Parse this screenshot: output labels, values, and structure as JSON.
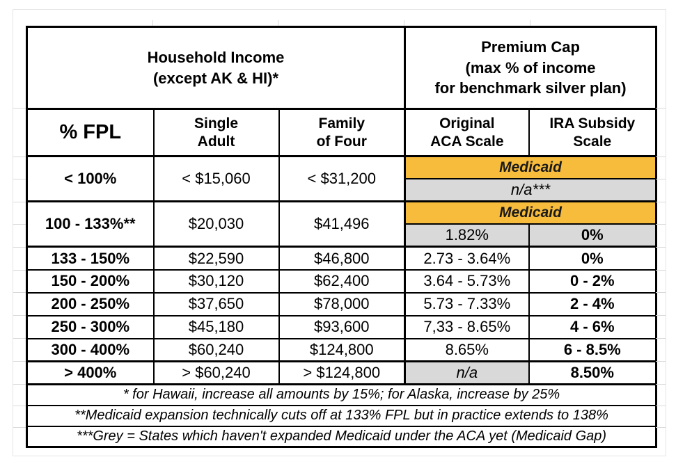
{
  "colors": {
    "medicaid_fill": "#f8bc3d",
    "na_fill": "#d9d9d9",
    "table_border": "#000000",
    "gridline": "#d9d9d9"
  },
  "table": {
    "group_headers": [
      {
        "label": "Household Income\n(except AK & HI)*"
      },
      {
        "label": "Premium Cap\n(max % of income\nfor benchmark silver plan)"
      }
    ],
    "column_headers": [
      "% FPL",
      "Single\nAdult",
      "Family\nof Four",
      "Original\nACA Scale",
      "IRA Subsidy\nScale"
    ],
    "rows": [
      {
        "fpl": "< 100%",
        "single": "< $15,060",
        "family": "< $31,200",
        "premium_top": "Medicaid",
        "premium_bottom": "n/a***"
      },
      {
        "fpl": "100 - 133%**",
        "single": "$20,030",
        "family": "$41,496",
        "premium_top": "Medicaid",
        "aca": "1.82%",
        "ira": "0%"
      },
      {
        "fpl": "133 - 150%",
        "single": "$22,590",
        "family": "$46,800",
        "aca": "2.73 - 3.64%",
        "ira": "0%"
      },
      {
        "fpl": "150 - 200%",
        "single": "$30,120",
        "family": "$62,400",
        "aca": "3.64 - 5.73%",
        "ira": "0 - 2%"
      },
      {
        "fpl": "200 - 250%",
        "single": "$37,650",
        "family": "$78,000",
        "aca": "5.73 - 7.33%",
        "ira": "2 - 4%"
      },
      {
        "fpl": "250 - 300%",
        "single": "$45,180",
        "family": "$93,600",
        "aca": "7,33 - 8.65%",
        "ira": "4 - 6%"
      },
      {
        "fpl": "300 - 400%",
        "single": "$60,240",
        "family": "$124,800",
        "aca": "8.65%",
        "ira": "6 - 8.5%"
      },
      {
        "fpl": "> 400%",
        "single": "> $60,240",
        "family": "> $124,800",
        "aca": "n/a",
        "ira": "8.50%"
      }
    ],
    "footnotes": [
      "* for Hawaii, increase all amounts by 15%; for Alaska, increase by 25%",
      "**Medicaid expansion technically cuts off at 133% FPL but in practice extends to 138%",
      "***Grey = States which haven't expanded Medicaid under the ACA yet (Medicaid Gap)"
    ]
  }
}
